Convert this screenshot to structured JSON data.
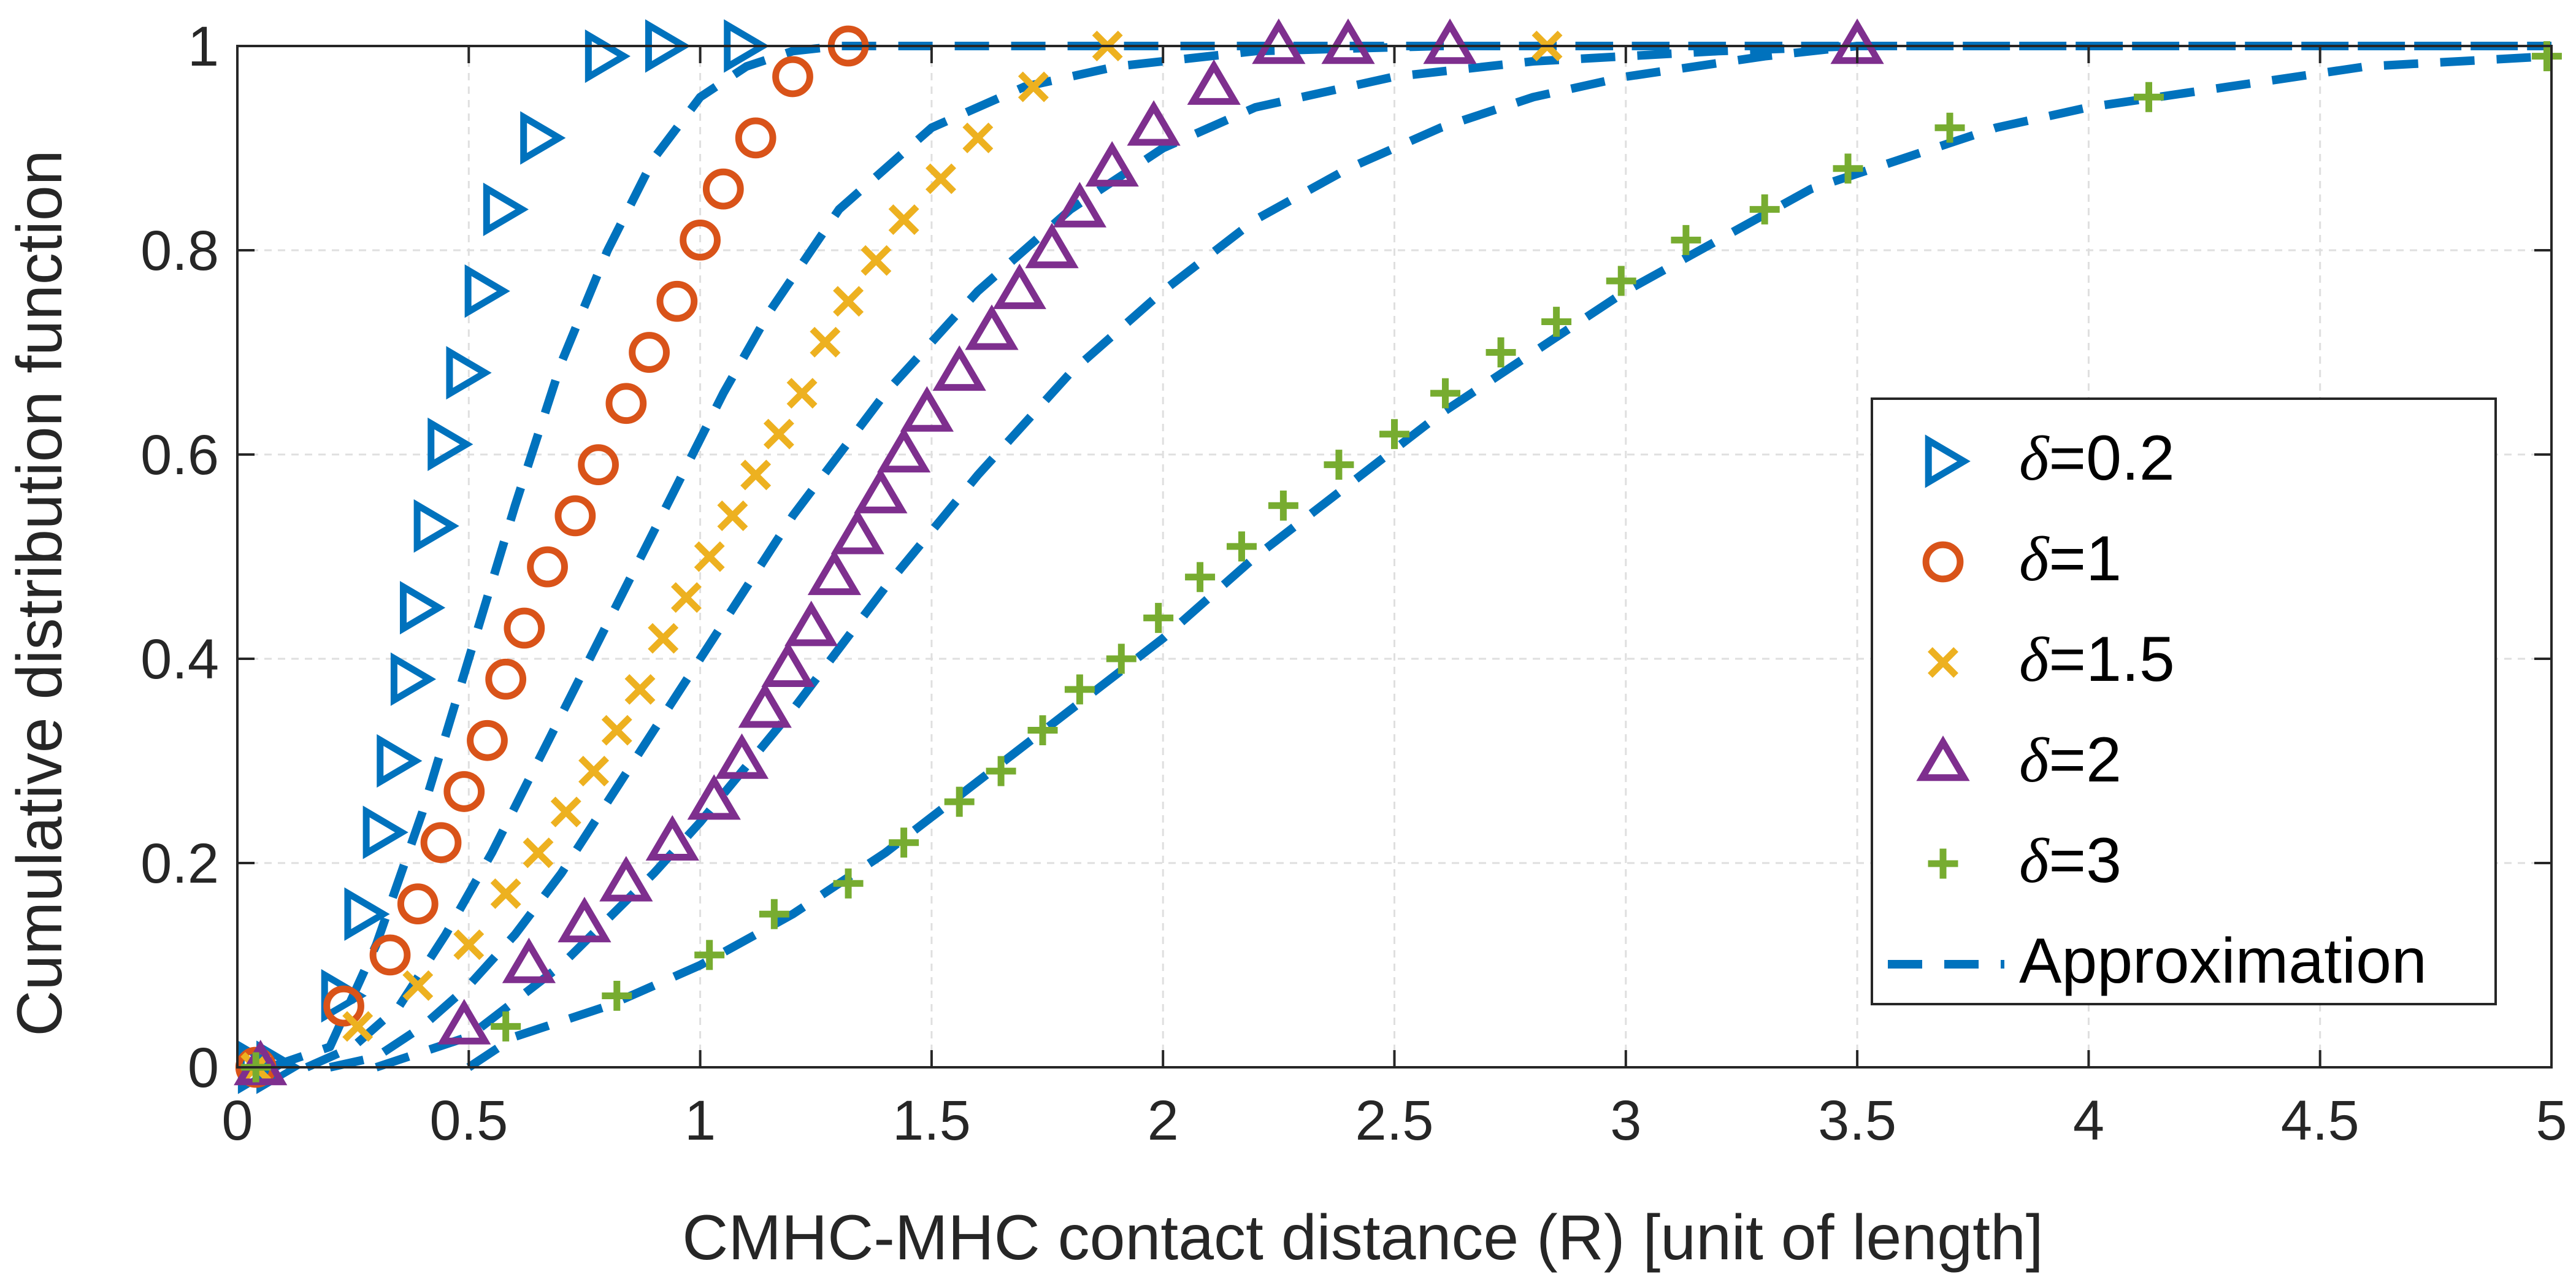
{
  "chart_data": {
    "type": "line",
    "title": "",
    "xlabel": "CMHC-MHC contact distance (R) [unit of length]",
    "ylabel": "Cumulative distribution function",
    "xlim": [
      0,
      5
    ],
    "ylim": [
      0,
      1
    ],
    "xticks": [
      0,
      0.5,
      1,
      1.5,
      2,
      2.5,
      3,
      3.5,
      4,
      4.5,
      5
    ],
    "xtick_labels": [
      "0",
      "0.5",
      "1",
      "1.5",
      "2",
      "2.5",
      "3",
      "3.5",
      "4",
      "4.5",
      "5"
    ],
    "yticks": [
      0,
      0.2,
      0.4,
      0.6,
      0.8,
      1
    ],
    "ytick_labels": [
      "0",
      "0.2",
      "0.4",
      "0.6",
      "0.8",
      "1"
    ],
    "grid": true,
    "legend_position": "right",
    "colors": {
      "d02": "#0072bd",
      "d1": "#d95319",
      "d15": "#edb120",
      "d2": "#7e2f8e",
      "d3": "#77ac30",
      "approx": "#0072bd"
    },
    "series": [
      {
        "key": "d02",
        "delta_symbol": "δ",
        "name": "=0.2",
        "marker": "triangle-right",
        "x": [
          0.04,
          0.08,
          0.22,
          0.27,
          0.31,
          0.34,
          0.37,
          0.39,
          0.42,
          0.45,
          0.49,
          0.53,
          0.57,
          0.65,
          0.79,
          0.92,
          1.09
        ],
        "y": [
          0.0,
          0.0,
          0.07,
          0.15,
          0.23,
          0.3,
          0.38,
          0.45,
          0.53,
          0.61,
          0.68,
          0.76,
          0.84,
          0.91,
          0.99,
          1.0,
          1.0
        ]
      },
      {
        "key": "d1",
        "delta_symbol": "δ",
        "name": "=1",
        "marker": "circle",
        "x": [
          0.04,
          0.23,
          0.33,
          0.39,
          0.44,
          0.49,
          0.54,
          0.58,
          0.62,
          0.67,
          0.73,
          0.78,
          0.84,
          0.89,
          0.95,
          1.0,
          1.05,
          1.12,
          1.2,
          1.32
        ],
        "y": [
          0.0,
          0.06,
          0.11,
          0.16,
          0.22,
          0.27,
          0.32,
          0.38,
          0.43,
          0.49,
          0.54,
          0.59,
          0.65,
          0.7,
          0.75,
          0.81,
          0.86,
          0.91,
          0.97,
          1.0
        ]
      },
      {
        "key": "d15",
        "delta_symbol": "δ",
        "name": "=1.5",
        "marker": "cross",
        "x": [
          0.04,
          0.26,
          0.39,
          0.5,
          0.58,
          0.65,
          0.71,
          0.77,
          0.82,
          0.87,
          0.92,
          0.97,
          1.02,
          1.07,
          1.12,
          1.17,
          1.22,
          1.27,
          1.32,
          1.38,
          1.44,
          1.52,
          1.6,
          1.72,
          1.88,
          2.83
        ],
        "y": [
          0.0,
          0.04,
          0.08,
          0.12,
          0.17,
          0.21,
          0.25,
          0.29,
          0.33,
          0.37,
          0.42,
          0.46,
          0.5,
          0.54,
          0.58,
          0.62,
          0.66,
          0.71,
          0.75,
          0.79,
          0.83,
          0.87,
          0.91,
          0.96,
          1.0,
          1.0
        ]
      },
      {
        "key": "d2",
        "delta_symbol": "δ",
        "name": "=2",
        "marker": "triangle-up",
        "x": [
          0.05,
          0.49,
          0.63,
          0.75,
          0.84,
          0.94,
          1.03,
          1.09,
          1.14,
          1.19,
          1.24,
          1.29,
          1.34,
          1.39,
          1.44,
          1.49,
          1.56,
          1.63,
          1.69,
          1.76,
          1.82,
          1.89,
          1.98,
          2.11,
          2.25,
          2.4,
          2.62,
          3.5
        ],
        "y": [
          0.0,
          0.04,
          0.1,
          0.14,
          0.18,
          0.22,
          0.26,
          0.3,
          0.35,
          0.39,
          0.43,
          0.48,
          0.52,
          0.56,
          0.6,
          0.64,
          0.68,
          0.72,
          0.76,
          0.8,
          0.84,
          0.88,
          0.92,
          0.96,
          1.0,
          1.0,
          1.0,
          1.0
        ]
      },
      {
        "key": "d3",
        "delta_symbol": "δ",
        "name": "=3",
        "marker": "plus",
        "x": [
          0.04,
          0.58,
          0.82,
          1.02,
          1.16,
          1.32,
          1.44,
          1.56,
          1.65,
          1.74,
          1.82,
          1.91,
          1.99,
          2.08,
          2.17,
          2.26,
          2.38,
          2.5,
          2.61,
          2.73,
          2.85,
          2.99,
          3.13,
          3.3,
          3.48,
          3.7,
          4.13,
          4.99
        ],
        "y": [
          0.0,
          0.04,
          0.07,
          0.11,
          0.15,
          0.18,
          0.22,
          0.26,
          0.29,
          0.33,
          0.37,
          0.4,
          0.44,
          0.48,
          0.51,
          0.55,
          0.59,
          0.62,
          0.66,
          0.7,
          0.73,
          0.77,
          0.81,
          0.84,
          0.88,
          0.92,
          0.95,
          0.99
        ]
      }
    ],
    "approximation": {
      "name": "Approximation",
      "style": "dashed",
      "curves": [
        {
          "x": [
            0.07,
            0.2,
            0.3,
            0.4,
            0.5,
            0.6,
            0.7,
            0.8,
            0.9,
            1.0,
            1.1,
            1.2,
            1.3,
            1.5,
            2.0,
            3.0,
            4.0,
            5.0
          ],
          "y": [
            0.0,
            0.02,
            0.12,
            0.25,
            0.4,
            0.55,
            0.69,
            0.8,
            0.89,
            0.95,
            0.98,
            0.995,
            1.0,
            1.0,
            1.0,
            1.0,
            1.0,
            1.0
          ]
        },
        {
          "x": [
            0.15,
            0.25,
            0.35,
            0.45,
            0.55,
            0.65,
            0.75,
            0.85,
            0.95,
            1.05,
            1.15,
            1.3,
            1.5,
            1.7,
            1.9,
            2.2,
            2.6,
            3.0,
            3.5,
            4.5,
            5.0
          ],
          "y": [
            0.0,
            0.02,
            0.06,
            0.13,
            0.21,
            0.3,
            0.39,
            0.48,
            0.57,
            0.66,
            0.74,
            0.84,
            0.92,
            0.96,
            0.98,
            0.995,
            1.0,
            1.0,
            1.0,
            1.0,
            1.0
          ]
        },
        {
          "x": [
            0.2,
            0.3,
            0.4,
            0.5,
            0.6,
            0.7,
            0.8,
            0.9,
            1.0,
            1.2,
            1.4,
            1.6,
            1.8,
            2.0,
            2.2,
            2.5,
            2.8,
            3.2,
            3.5,
            4.0,
            5.0
          ],
          "y": [
            0.0,
            0.01,
            0.04,
            0.08,
            0.13,
            0.19,
            0.26,
            0.33,
            0.4,
            0.54,
            0.66,
            0.76,
            0.84,
            0.9,
            0.94,
            0.97,
            0.985,
            0.995,
            1.0,
            1.0,
            1.0
          ]
        },
        {
          "x": [
            0.3,
            0.5,
            0.7,
            0.9,
            1.0,
            1.2,
            1.4,
            1.6,
            1.8,
            2.0,
            2.2,
            2.4,
            2.6,
            2.8,
            3.0,
            3.3,
            3.5,
            4.0,
            5.0
          ],
          "y": [
            0.0,
            0.03,
            0.1,
            0.19,
            0.24,
            0.35,
            0.47,
            0.58,
            0.68,
            0.76,
            0.83,
            0.88,
            0.92,
            0.95,
            0.97,
            0.99,
            1.0,
            1.0,
            1.0
          ]
        },
        {
          "x": [
            0.5,
            0.6,
            0.8,
            1.0,
            1.2,
            1.4,
            1.6,
            1.8,
            2.0,
            2.2,
            2.4,
            2.6,
            2.8,
            3.0,
            3.2,
            3.4,
            3.6,
            3.8,
            4.0,
            4.3,
            4.6,
            5.0
          ],
          "y": [
            0.0,
            0.03,
            0.06,
            0.1,
            0.15,
            0.21,
            0.28,
            0.35,
            0.42,
            0.5,
            0.57,
            0.64,
            0.7,
            0.76,
            0.81,
            0.86,
            0.89,
            0.92,
            0.94,
            0.96,
            0.98,
            0.99
          ]
        }
      ]
    }
  }
}
